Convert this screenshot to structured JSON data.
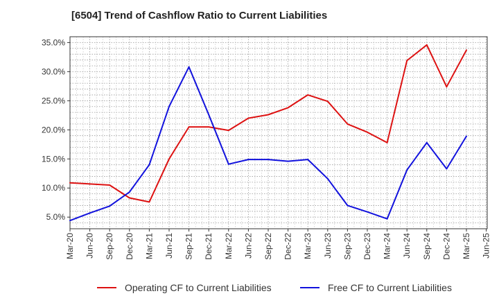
{
  "chart_data": {
    "type": "line",
    "title": "[6504]  Trend of Cashflow Ratio to Current Liabilities",
    "xlabel": "",
    "ylabel": "",
    "categories": [
      "Mar-20",
      "Jun-20",
      "Sep-20",
      "Dec-20",
      "Mar-21",
      "Jun-21",
      "Sep-21",
      "Dec-21",
      "Mar-22",
      "Jun-22",
      "Sep-22",
      "Dec-22",
      "Mar-23",
      "Jun-23",
      "Sep-23",
      "Dec-23",
      "Mar-24",
      "Jun-24",
      "Sep-24",
      "Dec-24",
      "Mar-25",
      "Jun-25"
    ],
    "ylim": [
      3.0,
      36.0
    ],
    "yticks": [
      5.0,
      10.0,
      15.0,
      20.0,
      25.0,
      30.0,
      35.0
    ],
    "ytick_labels": [
      "5.0%",
      "10.0%",
      "15.0%",
      "20.0%",
      "25.0%",
      "30.0%",
      "35.0%"
    ],
    "grid": true,
    "legend_position": "bottom",
    "series": [
      {
        "name": "Operating CF to Current Liabilities",
        "color": "#dd1111",
        "values": [
          10.9,
          10.7,
          10.5,
          8.3,
          7.6,
          15.0,
          20.5,
          20.5,
          19.9,
          22.0,
          22.6,
          23.8,
          26.0,
          24.9,
          21.0,
          19.6,
          17.8,
          31.9,
          34.6,
          27.4,
          33.7,
          null
        ]
      },
      {
        "name": "Free CF to Current Liabilities",
        "color": "#1111dd",
        "values": [
          4.4,
          5.7,
          6.9,
          9.3,
          14.0,
          24.0,
          30.8,
          22.6,
          14.1,
          14.9,
          14.9,
          14.6,
          14.9,
          11.6,
          7.0,
          5.9,
          4.7,
          13.1,
          17.8,
          13.3,
          18.9,
          null
        ]
      }
    ]
  }
}
